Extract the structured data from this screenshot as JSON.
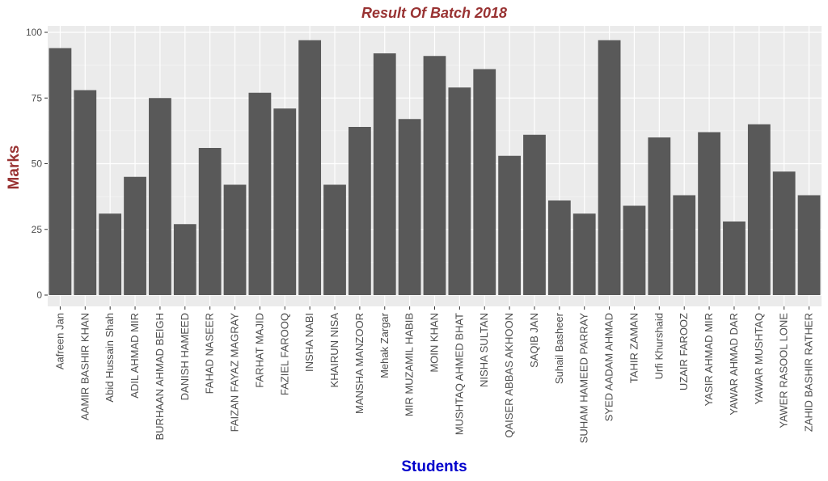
{
  "chart_data": {
    "type": "bar",
    "title": "Result Of Batch 2018",
    "xlabel": "Students",
    "ylabel": "Marks",
    "ylim": [
      0,
      100
    ],
    "yticks": [
      0,
      25,
      50,
      75,
      100
    ],
    "grid": true,
    "colors": {
      "bar": "#595959",
      "panel": "#ebebeb",
      "grid_major": "#ffffff",
      "title": "#993333",
      "ylabel": "#993333",
      "xlabel": "#0000cc"
    },
    "categories": [
      "Aafreen Jan",
      "AAMIR BASHIR KHAN",
      "Abid Hussain Shah",
      "ADIL AHMAD MIR",
      "BURHAAN AHMAD BEIGH",
      "DANISH HAMEED",
      "FAHAD NASEER",
      "FAIZAN FAYAZ MAGRAY",
      "FARHAT MAJID",
      "FAZIEL FAROOQ",
      "INSHA NABI",
      "KHAIRUN NISA",
      "MANSHA MANZOOR",
      "Mehak Zargar",
      "MIR MUZAMIL HABIB",
      "MOIN KHAN",
      "MUSHTAQ AHMED BHAT",
      "NISHA SULTAN",
      "QAISER ABBAS AKHOON",
      "SAQIB JAN",
      "Suhail Basheer",
      "SUHAM HAMEED PARRAY",
      "SYED AADAM AHMAD",
      "TAHIR ZAMAN",
      "Urfi Khurshaid",
      "UZAIR FAROOZ",
      "YASIR AHMAD MIR",
      "YAWAR AHMAD DAR",
      "YAWAR MUSHTAQ",
      "YAWER RASOOL LONE",
      "ZAHID BASHIR RATHER"
    ],
    "values": [
      94,
      78,
      31,
      45,
      75,
      27,
      56,
      42,
      77,
      71,
      97,
      42,
      64,
      92,
      67,
      91,
      79,
      86,
      53,
      61,
      36,
      31,
      97,
      34,
      60,
      38,
      62,
      28,
      65,
      47,
      38
    ]
  }
}
